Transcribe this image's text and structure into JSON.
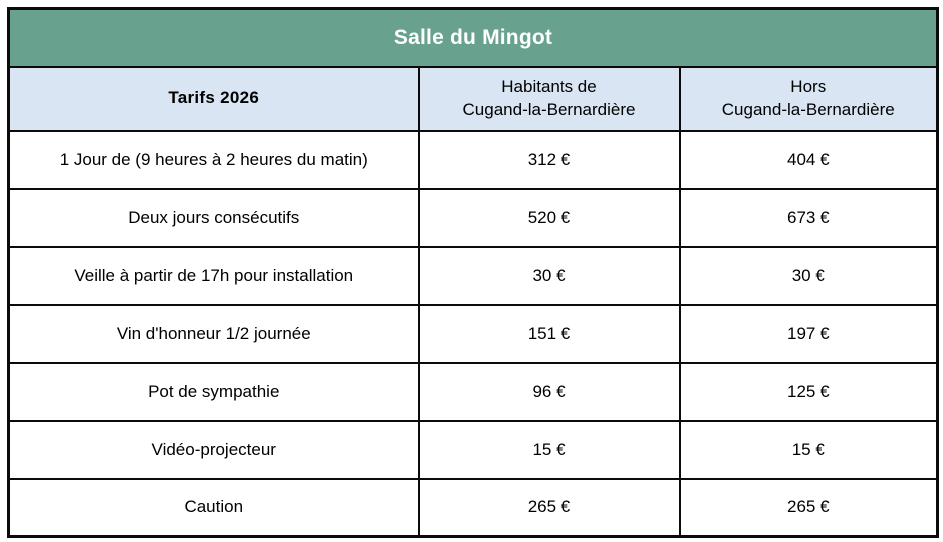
{
  "colors": {
    "title_bar_green": "#68a28f",
    "header_row_blue": "#d9e5f3",
    "tarifs_text_green": "#74ab97",
    "border_black": "#0b0b0b",
    "title_text_white": "#ffffff"
  },
  "table": {
    "title": "Salle du Mingot",
    "tarifs_label": "Tarifs 2026",
    "columns": [
      {
        "line1": "Habitants de",
        "line2": "Cugand-la-Bernardière"
      },
      {
        "line1": "Hors",
        "line2": "Cugand-la-Bernardière"
      }
    ],
    "rows": [
      {
        "label": "1 Jour de (9 heures à 2 heures du matin)",
        "resident": "312 €",
        "non_resident": "404 €"
      },
      {
        "label": "Deux jours consécutifs",
        "resident": "520 €",
        "non_resident": "673 €"
      },
      {
        "label": "Veille à partir de 17h pour installation",
        "resident": "30 €",
        "non_resident": "30 €"
      },
      {
        "label": "Vin d'honneur 1/2 journée",
        "resident": "151 €",
        "non_resident": "197 €"
      },
      {
        "label": "Pot de sympathie",
        "resident": "96 €",
        "non_resident": "125 €"
      },
      {
        "label": "Vidéo-projecteur",
        "resident": "15 €",
        "non_resident": "15 €"
      },
      {
        "label": "Caution",
        "resident": "265 €",
        "non_resident": "265 €"
      }
    ]
  }
}
